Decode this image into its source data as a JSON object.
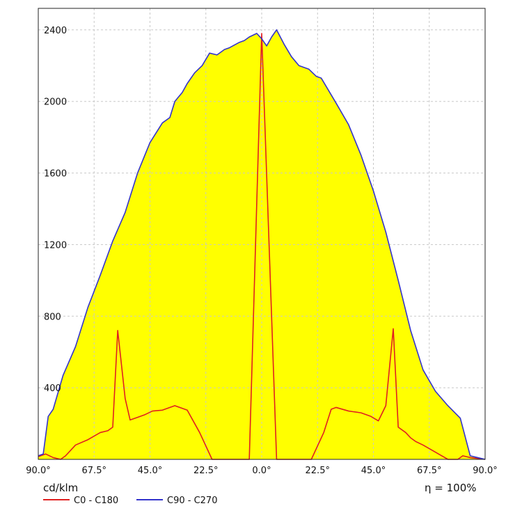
{
  "chart_data": {
    "type": "area",
    "unit_label": "cd/klm",
    "efficiency_label": "η = 100%",
    "ylim": [
      0,
      2520
    ],
    "yticks": [
      400,
      800,
      1200,
      1600,
      2000,
      2400
    ],
    "xlim": [
      -90,
      90
    ],
    "xticks": [
      -90,
      -67.5,
      -45,
      -22.5,
      0,
      22.5,
      45,
      67.5,
      90
    ],
    "xtick_labels": [
      "90.0°",
      "67.5°",
      "45.0°",
      "22.5°",
      "0.0°",
      "22.5°",
      "45.0°",
      "67.5°",
      "90.0°"
    ],
    "grid": true,
    "legend_position": "bottom-left",
    "fill_color": "#ffff00",
    "series": [
      {
        "name": "C0 - C180",
        "color": "#e02020",
        "x": [
          -90,
          -87,
          -84,
          -81,
          -79,
          -75,
          -70,
          -65,
          -62,
          -60,
          -58,
          -55,
          -53,
          -50,
          -47,
          -44,
          -40,
          -35,
          -30,
          -27,
          -25,
          -20,
          -15,
          -10,
          -6,
          -5,
          0,
          6,
          7,
          10,
          15,
          20,
          25,
          28,
          30,
          35,
          40,
          44,
          47,
          50,
          53,
          55,
          58,
          60,
          62,
          65,
          70,
          75,
          79,
          81,
          84,
          87,
          90
        ],
        "y": [
          15,
          30,
          10,
          0,
          20,
          80,
          110,
          150,
          160,
          180,
          720,
          340,
          220,
          235,
          250,
          270,
          275,
          300,
          275,
          200,
          150,
          0,
          0,
          0,
          0,
          0,
          2380,
          0,
          0,
          0,
          0,
          0,
          150,
          280,
          290,
          270,
          260,
          240,
          215,
          300,
          730,
          180,
          150,
          120,
          100,
          80,
          40,
          0,
          0,
          20,
          10,
          5,
          0
        ]
      },
      {
        "name": "C90 - C270",
        "color": "#3333cc",
        "x": [
          -90,
          -88,
          -86,
          -84,
          -80,
          -75,
          -70,
          -65,
          -60,
          -55,
          -50,
          -45,
          -40,
          -37,
          -35,
          -32,
          -30,
          -27,
          -24,
          -21,
          -18,
          -15,
          -13,
          -11,
          -9,
          -7,
          -5,
          -2,
          0,
          2,
          4,
          6,
          9,
          12,
          15,
          19,
          22,
          24,
          27,
          30,
          35,
          40,
          45,
          50,
          55,
          60,
          65,
          70,
          75,
          80,
          84,
          87,
          90
        ],
        "y": [
          20,
          30,
          240,
          280,
          470,
          630,
          850,
          1030,
          1220,
          1380,
          1600,
          1770,
          1880,
          1910,
          2000,
          2050,
          2100,
          2160,
          2200,
          2270,
          2260,
          2290,
          2300,
          2315,
          2330,
          2340,
          2360,
          2380,
          2350,
          2310,
          2360,
          2400,
          2320,
          2250,
          2200,
          2180,
          2140,
          2130,
          2060,
          1990,
          1870,
          1700,
          1500,
          1270,
          1000,
          720,
          500,
          380,
          300,
          230,
          20,
          10,
          0
        ]
      }
    ]
  }
}
